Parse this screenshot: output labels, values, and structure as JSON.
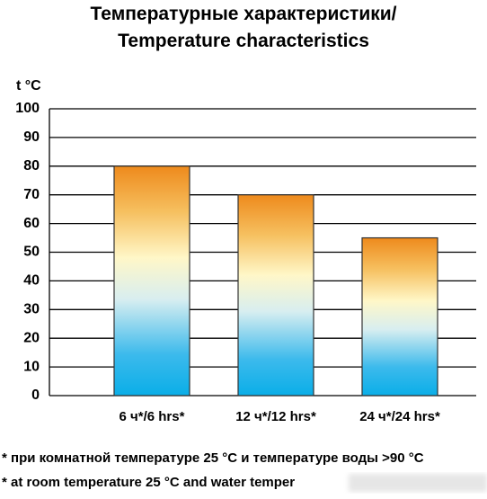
{
  "chart_data": {
    "type": "bar",
    "title": [
      "Температурные характеристики/",
      "Temperature characteristics"
    ],
    "y_axis_label": "t °C",
    "categories": [
      "6 ч*/6 hrs*",
      "12 ч*/12 hrs*",
      "24 ч*/24 hrs*"
    ],
    "values": [
      80,
      70,
      55
    ],
    "ylim": [
      0,
      100
    ],
    "yticks": [
      0,
      10,
      20,
      30,
      40,
      50,
      60,
      70,
      80,
      90,
      100
    ],
    "grid": true,
    "footnotes": [
      "* при комнатной температуре 25 °С и температуре воды >90 °С",
      "* at room temperature 25 °С and water temper"
    ]
  }
}
